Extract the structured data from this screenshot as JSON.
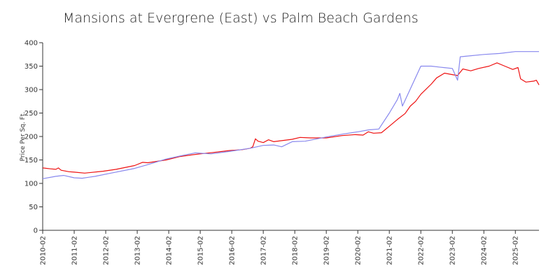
{
  "chart_data": {
    "type": "line",
    "title": "Mansions at Evergrene (East) vs Palm Beach Gardens",
    "xlabel": "",
    "ylabel": "Price Per Sq. Ft.",
    "ylim": [
      0,
      400
    ],
    "yticks": [
      0,
      50,
      100,
      150,
      200,
      250,
      300,
      350,
      400
    ],
    "xlim": [
      "2010-02",
      "2025-11"
    ],
    "xtick_labels": [
      "2010-02",
      "2011-02",
      "2012-02",
      "2013-02",
      "2014-02",
      "2015-02",
      "2016-02",
      "2017-02",
      "2018-02",
      "2019-02",
      "2020-02",
      "2021-02",
      "2022-02",
      "2023-02",
      "2024-02",
      "2025-02"
    ],
    "grid": false,
    "legend": "none",
    "series": [
      {
        "color": "#ee1111",
        "points": [
          [
            "2010-02",
            133
          ],
          [
            "2010-05",
            131
          ],
          [
            "2010-07",
            130
          ],
          [
            "2010-08",
            133
          ],
          [
            "2010-09",
            128
          ],
          [
            "2010-12",
            125
          ],
          [
            "2011-02",
            124
          ],
          [
            "2011-06",
            122
          ],
          [
            "2012-01",
            126
          ],
          [
            "2012-06",
            130
          ],
          [
            "2013-01",
            138
          ],
          [
            "2013-04",
            145
          ],
          [
            "2013-06",
            144
          ],
          [
            "2014-01",
            150
          ],
          [
            "2014-06",
            157
          ],
          [
            "2014-11",
            161
          ],
          [
            "2015-02",
            163
          ],
          [
            "2015-07",
            166
          ],
          [
            "2016-01",
            170
          ],
          [
            "2016-06",
            172
          ],
          [
            "2016-09",
            175
          ],
          [
            "2016-10",
            178
          ],
          [
            "2016-11",
            195
          ],
          [
            "2016-12",
            190
          ],
          [
            "2017-02",
            187
          ],
          [
            "2017-04",
            193
          ],
          [
            "2017-06",
            189
          ],
          [
            "2018-01",
            194
          ],
          [
            "2018-04",
            198
          ],
          [
            "2018-08",
            197
          ],
          [
            "2019-02",
            197
          ],
          [
            "2019-08",
            202
          ],
          [
            "2020-01",
            204
          ],
          [
            "2020-04",
            203
          ],
          [
            "2020-06",
            210
          ],
          [
            "2020-08",
            207
          ],
          [
            "2020-11",
            208
          ],
          [
            "2021-02",
            222
          ],
          [
            "2021-05",
            236
          ],
          [
            "2021-08",
            249
          ],
          [
            "2021-10",
            265
          ],
          [
            "2021-12",
            275
          ],
          [
            "2022-02",
            290
          ],
          [
            "2022-06",
            312
          ],
          [
            "2022-08",
            325
          ],
          [
            "2022-11",
            335
          ],
          [
            "2023-02",
            332
          ],
          [
            "2023-04",
            330
          ],
          [
            "2023-06",
            344
          ],
          [
            "2023-09",
            340
          ],
          [
            "2023-12",
            345
          ],
          [
            "2024-04",
            350
          ],
          [
            "2024-07",
            357
          ],
          [
            "2024-10",
            350
          ],
          [
            "2025-01",
            343
          ],
          [
            "2025-03",
            347
          ],
          [
            "2025-04",
            323
          ],
          [
            "2025-06",
            316
          ],
          [
            "2025-09",
            318
          ],
          [
            "2025-10",
            320
          ],
          [
            "2025-11",
            310
          ]
        ]
      },
      {
        "color": "#8888ee",
        "points": [
          [
            "2010-02",
            110
          ],
          [
            "2010-07",
            115
          ],
          [
            "2010-10",
            117
          ],
          [
            "2011-02",
            112
          ],
          [
            "2011-05",
            111
          ],
          [
            "2011-10",
            115
          ],
          [
            "2012-04",
            122
          ],
          [
            "2013-01",
            132
          ],
          [
            "2013-06",
            140
          ],
          [
            "2014-01",
            152
          ],
          [
            "2014-06",
            158
          ],
          [
            "2014-12",
            165
          ],
          [
            "2015-06",
            163
          ],
          [
            "2016-01",
            168
          ],
          [
            "2016-09",
            175
          ],
          [
            "2017-02",
            181
          ],
          [
            "2017-06",
            182
          ],
          [
            "2017-09",
            178
          ],
          [
            "2018-01",
            189
          ],
          [
            "2018-06",
            190
          ],
          [
            "2019-02",
            199
          ],
          [
            "2019-08",
            205
          ],
          [
            "2020-02",
            210
          ],
          [
            "2020-06",
            214
          ],
          [
            "2020-10",
            216
          ],
          [
            "2021-02",
            250
          ],
          [
            "2021-05",
            278
          ],
          [
            "2021-06",
            292
          ],
          [
            "2021-07",
            265
          ],
          [
            "2022-02",
            350
          ],
          [
            "2022-06",
            350
          ],
          [
            "2022-09",
            348
          ],
          [
            "2023-02",
            345
          ],
          [
            "2023-04",
            320
          ],
          [
            "2023-05",
            370
          ],
          [
            "2023-07",
            371
          ],
          [
            "2024-02",
            375
          ],
          [
            "2024-08",
            377
          ],
          [
            "2025-02",
            381
          ],
          [
            "2025-11",
            381
          ]
        ]
      }
    ]
  }
}
